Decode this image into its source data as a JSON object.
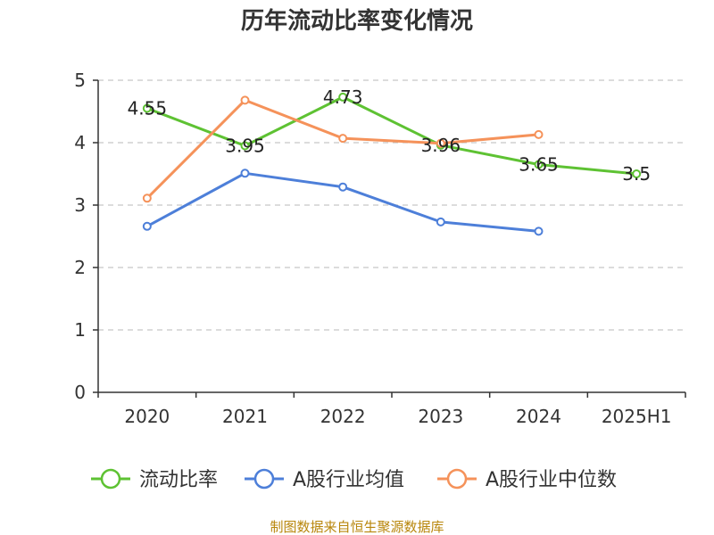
{
  "chart_data": {
    "type": "line",
    "title": "历年流动比率变化情况",
    "categories": [
      "2020",
      "2021",
      "2022",
      "2023",
      "2024",
      "2025H1"
    ],
    "ylim": [
      0,
      5
    ],
    "yticks": [
      "0",
      "1",
      "2",
      "3",
      "4",
      "5"
    ],
    "grid": true,
    "legend_position": "bottom",
    "series": [
      {
        "name": "流动比率",
        "color": "#5ec233",
        "values": [
          4.55,
          3.95,
          4.73,
          3.96,
          3.65,
          3.5
        ],
        "labels": [
          "4.55",
          "3.95",
          "4.73",
          "3.96",
          "3.65",
          "3.5"
        ]
      },
      {
        "name": "A股行业均值",
        "color": "#4d7fd9",
        "values": [
          2.66,
          3.51,
          3.29,
          2.73,
          2.58,
          null
        ]
      },
      {
        "name": "A股行业中位数",
        "color": "#f5925a",
        "values": [
          3.11,
          4.68,
          4.07,
          3.99,
          4.13,
          null
        ]
      }
    ]
  },
  "source": "制图数据来自恒生聚源数据库"
}
